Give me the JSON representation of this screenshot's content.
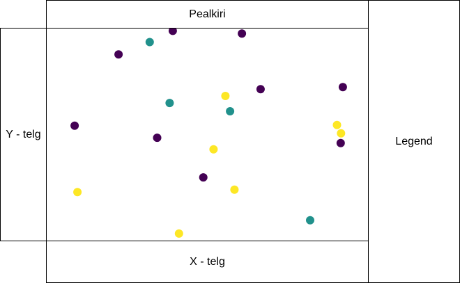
{
  "chart_data": {
    "type": "scatter",
    "title": "Pealkiri",
    "xlabel": "X - telg",
    "ylabel": "Y - telg",
    "legend_label": "Legend",
    "legend_placement": "right",
    "grid": false,
    "xlim": [
      0,
      10
    ],
    "ylim": [
      0,
      10
    ],
    "series": [
      {
        "color": "#440154",
        "points": [
          [
            3.89,
            9.89
          ],
          [
            6.11,
            9.76
          ],
          [
            2.15,
            8.78
          ],
          [
            6.71,
            7.14
          ],
          [
            9.35,
            7.24
          ],
          [
            0.74,
            5.42
          ],
          [
            3.39,
            4.85
          ],
          [
            9.28,
            4.6
          ],
          [
            4.87,
            2.98
          ]
        ]
      },
      {
        "color": "#21918c",
        "points": [
          [
            3.15,
            9.36
          ],
          [
            3.79,
            6.49
          ],
          [
            5.73,
            6.1
          ],
          [
            8.3,
            0.96
          ]
        ]
      },
      {
        "color": "#fde725",
        "points": [
          [
            5.58,
            6.82
          ],
          [
            9.16,
            5.45
          ],
          [
            9.29,
            5.06
          ],
          [
            5.2,
            4.3
          ],
          [
            0.83,
            2.29
          ],
          [
            5.87,
            2.4
          ],
          [
            4.09,
            0.33
          ]
        ]
      }
    ]
  }
}
